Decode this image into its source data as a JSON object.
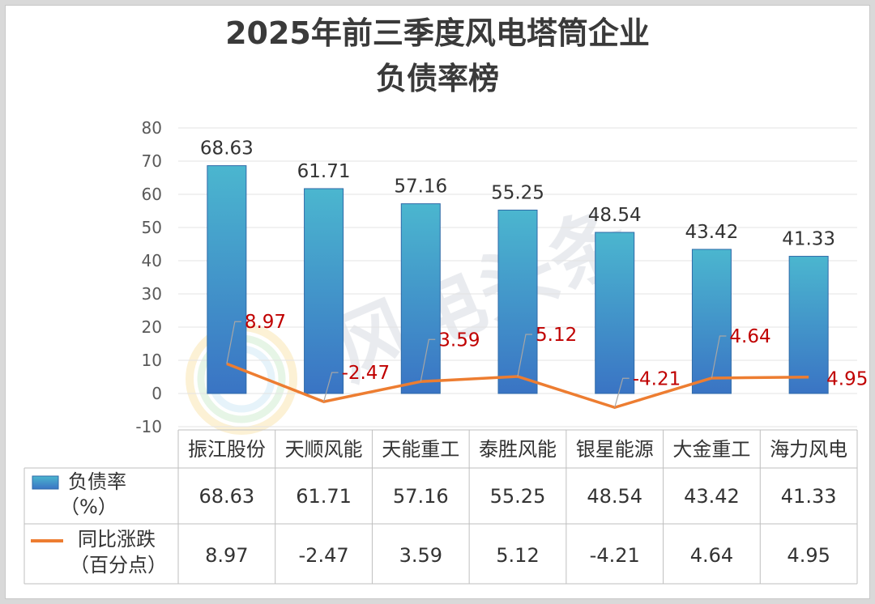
{
  "title_line1": "2025年前三季度风电塔筒企业",
  "title_line2": "负债率榜",
  "watermark": "风电头条",
  "colors": {
    "bar_top": "#4bb6cf",
    "bar_bottom": "#3a74c4",
    "line": "#ed7d31",
    "change_label": "#c00000"
  },
  "chart_data": {
    "type": "bar",
    "categories": [
      "振江股份",
      "天顺风能",
      "天能重工",
      "泰胜风能",
      "银星能源",
      "大金重工",
      "海力风电"
    ],
    "ylim": [
      -10,
      80
    ],
    "yticks": [
      -10,
      0,
      10,
      20,
      30,
      40,
      50,
      60,
      70,
      80
    ],
    "grid": true,
    "series": [
      {
        "name": "负债率（%）",
        "type": "bar",
        "values": [
          68.63,
          61.71,
          57.16,
          55.25,
          48.54,
          43.42,
          41.33
        ],
        "labels": [
          "68.63",
          "61.71",
          "57.16",
          "55.25",
          "48.54",
          "43.42",
          "41.33"
        ]
      },
      {
        "name": "同比涨跌（百分点）",
        "type": "line",
        "values": [
          8.97,
          -2.47,
          3.59,
          5.12,
          -4.21,
          4.64,
          4.95
        ],
        "labels": [
          "8.97",
          "-2.47",
          "3.59",
          "5.12",
          "-4.21",
          "4.64",
          "4.95"
        ]
      }
    ],
    "legend": {
      "bar_line1": "负债率",
      "bar_line2": "（%）",
      "line_line1": "同比涨跌",
      "line_line2": "（百分点）"
    }
  }
}
